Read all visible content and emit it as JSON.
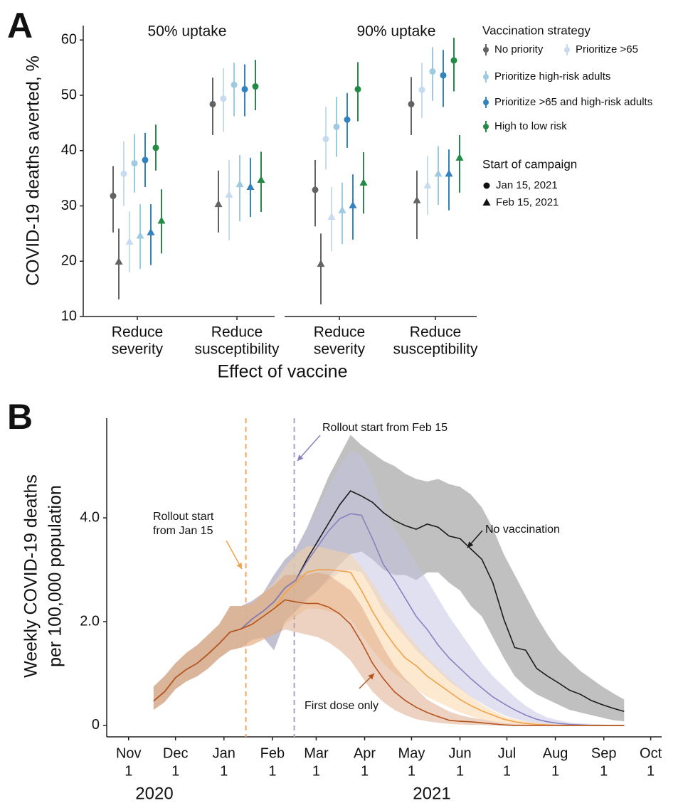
{
  "chart_data": [
    {
      "type": "dot-whisker",
      "panel_label": "A",
      "ylabel": "COVID-19 deaths averted, %",
      "xlabel": "Effect of vaccine",
      "facets": [
        "50% uptake",
        "90% uptake"
      ],
      "categories": [
        [
          "Reduce",
          "severity"
        ],
        [
          "Reduce",
          "susceptibility"
        ]
      ],
      "ylim": [
        10,
        62.6
      ],
      "yticks": [
        10,
        20,
        30,
        40,
        50,
        60
      ],
      "legend_title": "Vaccination strategy",
      "start_title": "Start of campaign",
      "starts": [
        {
          "name": "Jan 15, 2021",
          "marker": "circle"
        },
        {
          "name": "Feb 15, 2021",
          "marker": "triangle"
        }
      ],
      "series": [
        {
          "name": "No priority",
          "color": "#636363",
          "values": [
            [
              [
                31.8,
                25.2,
                37.2
              ],
              [
                48.4,
                42.8,
                53.2
              ],
              [
                32.9,
                26.3,
                38.3
              ],
              [
                48.4,
                42.8,
                53.3
              ]
            ],
            [
              [
                19.9,
                13.1,
                25.9
              ],
              [
                30.3,
                25.2,
                36.4
              ],
              [
                19.5,
                12.2,
                25
              ],
              [
                31,
                24,
                36.4
              ]
            ]
          ]
        },
        {
          "name": "Prioritize >65",
          "color": "#c6dbef",
          "values": [
            [
              [
                35.8,
                30,
                41.7
              ],
              [
                49.4,
                43.4,
                54.9
              ],
              [
                42.1,
                36.6,
                47.9
              ],
              [
                51,
                45.9,
                55.9
              ]
            ],
            [
              [
                23.5,
                18,
                29
              ],
              [
                32,
                23.8,
                38.3
              ],
              [
                28,
                21.8,
                33.4
              ],
              [
                33.7,
                28.4,
                39
              ]
            ]
          ]
        },
        {
          "name": "Prioritize high-risk adults",
          "color": "#9ecae1",
          "values": [
            [
              [
                37.7,
                32.4,
                43
              ],
              [
                51.9,
                46.2,
                55.9
              ],
              [
                44.3,
                38.9,
                49.7
              ],
              [
                54.3,
                49,
                58.7
              ]
            ],
            [
              [
                24.6,
                18.6,
                30.3
              ],
              [
                33.9,
                27.2,
                39.2
              ],
              [
                29.2,
                23.1,
                34.2
              ],
              [
                35.8,
                30.2,
                40.8
              ]
            ]
          ]
        },
        {
          "name": "Prioritize >65 and high-risk adults",
          "color": "#3182bd",
          "values": [
            [
              [
                38.3,
                33.4,
                43.2
              ],
              [
                51.1,
                46.2,
                55.6
              ],
              [
                45.6,
                40.5,
                50.4
              ],
              [
                53.6,
                47.9,
                58.2
              ]
            ],
            [
              [
                25.2,
                19.3,
                30.3
              ],
              [
                33.4,
                28,
                38.7
              ],
              [
                30.1,
                23.9,
                35.7
              ],
              [
                35.8,
                29.2,
                40.2
              ]
            ]
          ]
        },
        {
          "name": "High to low risk",
          "color": "#238b45",
          "values": [
            [
              [
                40.5,
                36.4,
                44.7
              ],
              [
                51.6,
                47.3,
                56.4
              ],
              [
                51.1,
                45.3,
                56
              ],
              [
                56.3,
                50.7,
                60.4
              ]
            ],
            [
              [
                27.3,
                21.4,
                33
              ],
              [
                34.7,
                28.9,
                39.8
              ],
              [
                34.2,
                28.6,
                39.7
              ],
              [
                38.7,
                32.4,
                42.8
              ]
            ]
          ]
        }
      ]
    },
    {
      "type": "line-band",
      "panel_label": "B",
      "ylabel": [
        "Weekly COVID-19 deaths",
        "per 100,000 population"
      ],
      "ylim": [
        -0.22,
        5.92
      ],
      "yticks": [
        0,
        {
          "value": 2,
          "label": "2.0"
        },
        {
          "value": 4,
          "label": "4.0"
        }
      ],
      "xlim": [
        "2020-10-18",
        "2021-10-08"
      ],
      "xticks": [
        {
          "value": "2020-11-01",
          "label": [
            "Nov",
            "1"
          ]
        },
        {
          "value": "2020-12-01",
          "label": [
            "Dec",
            "1"
          ]
        },
        {
          "value": "2021-01-01",
          "label": [
            "Jan",
            "1"
          ]
        },
        {
          "value": "2021-02-01",
          "label": [
            "Feb",
            "1"
          ]
        },
        {
          "value": "2021-03-01",
          "label": [
            "Mar",
            "1"
          ]
        },
        {
          "value": "2021-04-01",
          "label": [
            "Apr",
            "1"
          ]
        },
        {
          "value": "2021-05-01",
          "label": [
            "May",
            "1"
          ]
        },
        {
          "value": "2021-06-01",
          "label": [
            "Jun",
            "1"
          ]
        },
        {
          "value": "2021-07-01",
          "label": [
            "Jul",
            "1"
          ]
        },
        {
          "value": "2021-08-01",
          "label": [
            "Aug",
            "1"
          ]
        },
        {
          "value": "2021-09-01",
          "label": [
            "Sep",
            "1"
          ]
        },
        {
          "value": "2021-10-01",
          "label": [
            "Oct",
            "1"
          ]
        }
      ],
      "year_labels": [
        "2020",
        "2021"
      ],
      "rollout_lines": [
        {
          "x": "2021-01-15",
          "color": "#f4a75a"
        },
        {
          "x": "2021-02-15",
          "color": "#a3a2d0"
        }
      ],
      "x": [
        "2020-11-17",
        "2020-11-24",
        "2020-12-01",
        "2020-12-08",
        "2020-12-15",
        "2020-12-22",
        "2020-12-29",
        "2021-01-05",
        "2021-01-12",
        "2021-01-19",
        "2021-01-26",
        "2021-02-02",
        "2021-02-09",
        "2021-02-16",
        "2021-02-23",
        "2021-03-02",
        "2021-03-09",
        "2021-03-16",
        "2021-03-23",
        "2021-03-30",
        "2021-04-06",
        "2021-04-13",
        "2021-04-20",
        "2021-04-27",
        "2021-05-04",
        "2021-05-11",
        "2021-05-18",
        "2021-05-25",
        "2021-06-01",
        "2021-06-08",
        "2021-06-15",
        "2021-06-22",
        "2021-06-29",
        "2021-07-06",
        "2021-07-13",
        "2021-07-20",
        "2021-07-27",
        "2021-08-03",
        "2021-08-10",
        "2021-08-17",
        "2021-08-24",
        "2021-08-31",
        "2021-09-07",
        "2021-09-14"
      ],
      "series": [
        {
          "name": [
            "No vaccination"
          ],
          "color": "#1a1a1a",
          "band_color": "#8c8c8c",
          "values": [
            0.47,
            0.65,
            0.92,
            1.08,
            1.2,
            1.38,
            1.58,
            1.8,
            1.86,
            2.05,
            2.2,
            2.38,
            2.65,
            2.8,
            3.2,
            3.55,
            3.9,
            4.25,
            4.52,
            4.42,
            4.3,
            4.1,
            3.95,
            3.85,
            3.78,
            3.88,
            3.82,
            3.65,
            3.6,
            3.4,
            3.2,
            2.75,
            2.05,
            1.5,
            1.45,
            1.1,
            0.95,
            0.82,
            0.68,
            0.6,
            0.48,
            0.4,
            0.33,
            0.27
          ],
          "lower": [
            0.3,
            0.45,
            0.7,
            0.85,
            0.95,
            1.1,
            1.3,
            1.45,
            1.5,
            1.65,
            1.7,
            1.45,
            2.0,
            2.2,
            2.45,
            2.6,
            2.85,
            3.1,
            3.3,
            3.35,
            3.2,
            3.0,
            2.9,
            2.9,
            2.8,
            2.95,
            2.95,
            2.75,
            2.6,
            2.3,
            2.1,
            1.7,
            1.3,
            0.95,
            0.75,
            0.6,
            0.5,
            0.4,
            0.3,
            0.25,
            0.2,
            0.15,
            0.1,
            0.08
          ],
          "upper": [
            0.75,
            0.95,
            1.2,
            1.4,
            1.55,
            1.75,
            1.95,
            2.3,
            2.3,
            2.4,
            2.55,
            2.9,
            3.2,
            3.4,
            3.8,
            4.3,
            4.8,
            5.2,
            5.6,
            5.4,
            5.25,
            5.1,
            5.0,
            4.85,
            4.75,
            4.7,
            4.75,
            4.65,
            4.6,
            4.45,
            4.2,
            3.8,
            3.3,
            2.9,
            2.5,
            2.1,
            1.75,
            1.45,
            1.25,
            1.05,
            0.9,
            0.75,
            0.62,
            0.5
          ]
        },
        {
          "name": [
            "Rollout start from Feb 15"
          ],
          "color": "#8682bf",
          "band_color": "#c3c2e3",
          "values": [
            0.47,
            0.65,
            0.92,
            1.08,
            1.2,
            1.38,
            1.58,
            1.8,
            1.86,
            2.05,
            2.2,
            2.38,
            2.65,
            2.8,
            3.15,
            3.45,
            3.75,
            3.98,
            4.08,
            4.05,
            3.6,
            3.1,
            2.8,
            2.45,
            2.1,
            1.85,
            1.55,
            1.3,
            1.1,
            0.9,
            0.72,
            0.55,
            0.42,
            0.3,
            0.2,
            0.12,
            0.07,
            0.04,
            0.02,
            0.01,
            0,
            0,
            0,
            0
          ],
          "lower": [
            0.3,
            0.45,
            0.7,
            0.85,
            0.95,
            1.1,
            1.3,
            1.45,
            1.5,
            1.65,
            1.7,
            1.45,
            2.0,
            2.2,
            2.4,
            2.6,
            2.8,
            2.95,
            3.0,
            2.95,
            2.6,
            2.2,
            1.95,
            1.7,
            1.45,
            1.25,
            1.05,
            0.85,
            0.7,
            0.55,
            0.42,
            0.3,
            0.2,
            0.13,
            0.08,
            0.04,
            0.02,
            0.01,
            0,
            0,
            0,
            0,
            0,
            0
          ],
          "upper": [
            0.75,
            0.95,
            1.2,
            1.4,
            1.55,
            1.75,
            1.95,
            2.3,
            2.3,
            2.4,
            2.55,
            2.9,
            3.2,
            3.4,
            3.8,
            4.2,
            4.6,
            5.0,
            5.3,
            5.2,
            4.8,
            4.2,
            3.8,
            3.5,
            3.1,
            2.8,
            2.45,
            2.1,
            1.8,
            1.5,
            1.2,
            0.95,
            0.75,
            0.55,
            0.38,
            0.25,
            0.15,
            0.1,
            0.06,
            0.04,
            0.03,
            0.02,
            0.01,
            0.01
          ]
        },
        {
          "name": [
            "Rollout start",
            "from Jan 15"
          ],
          "color": "#f2a24a",
          "band_color": "#fbd3a0",
          "values": [
            0.47,
            0.65,
            0.92,
            1.08,
            1.2,
            1.38,
            1.58,
            1.8,
            1.86,
            1.95,
            2.1,
            2.25,
            2.55,
            2.75,
            2.95,
            3.0,
            3.0,
            2.98,
            2.95,
            2.6,
            2.2,
            1.85,
            1.55,
            1.3,
            1.15,
            0.95,
            0.8,
            0.65,
            0.5,
            0.38,
            0.28,
            0.2,
            0.12,
            0.07,
            0.04,
            0.02,
            0.01,
            0,
            0,
            0,
            0,
            0,
            0,
            0
          ],
          "lower": [
            0.3,
            0.45,
            0.7,
            0.85,
            0.95,
            1.1,
            1.3,
            1.45,
            1.5,
            1.55,
            1.65,
            1.75,
            1.95,
            2.1,
            2.25,
            2.25,
            2.2,
            2.15,
            2.05,
            1.75,
            1.45,
            1.2,
            1.0,
            0.85,
            0.7,
            0.55,
            0.45,
            0.35,
            0.25,
            0.18,
            0.12,
            0.08,
            0.05,
            0.03,
            0.02,
            0.01,
            0,
            0,
            0,
            0,
            0,
            0,
            0,
            0
          ],
          "upper": [
            0.75,
            0.95,
            1.2,
            1.4,
            1.55,
            1.75,
            1.95,
            2.3,
            2.3,
            2.35,
            2.55,
            2.75,
            3.05,
            3.3,
            3.45,
            3.45,
            3.4,
            3.35,
            3.3,
            3.05,
            2.75,
            2.4,
            2.1,
            1.8,
            1.55,
            1.3,
            1.1,
            0.9,
            0.72,
            0.55,
            0.4,
            0.28,
            0.18,
            0.12,
            0.08,
            0.05,
            0.03,
            0.02,
            0.01,
            0.01,
            0,
            0,
            0,
            0
          ]
        },
        {
          "name": [
            "First dose only"
          ],
          "color": "#b5541e",
          "band_color": "#d89c76",
          "values": [
            0.47,
            0.65,
            0.92,
            1.08,
            1.2,
            1.38,
            1.58,
            1.8,
            1.86,
            1.95,
            2.1,
            2.25,
            2.42,
            2.38,
            2.35,
            2.35,
            2.28,
            2.15,
            1.95,
            1.6,
            1.2,
            0.9,
            0.65,
            0.48,
            0.35,
            0.25,
            0.17,
            0.1,
            0.08,
            0.07,
            0.05,
            0.03,
            0.01,
            0,
            0,
            0,
            0,
            0,
            0,
            0,
            0,
            0,
            0,
            0
          ],
          "lower": [
            0.3,
            0.45,
            0.7,
            0.85,
            0.95,
            1.1,
            1.3,
            1.45,
            1.5,
            1.55,
            1.65,
            1.75,
            1.85,
            1.8,
            1.75,
            1.7,
            1.6,
            1.45,
            1.25,
            0.95,
            0.65,
            0.45,
            0.3,
            0.2,
            0.12,
            0.08,
            0.05,
            0.03,
            0.02,
            0.01,
            0.01,
            0,
            0,
            0,
            0,
            0,
            0,
            0,
            0,
            0,
            0,
            0,
            0,
            0
          ],
          "upper": [
            0.75,
            0.95,
            1.2,
            1.4,
            1.55,
            1.75,
            1.95,
            2.3,
            2.3,
            2.35,
            2.55,
            2.7,
            2.9,
            2.9,
            2.9,
            2.95,
            2.9,
            2.75,
            2.6,
            2.3,
            1.9,
            1.5,
            1.15,
            0.9,
            0.7,
            0.5,
            0.38,
            0.27,
            0.2,
            0.15,
            0.12,
            0.08,
            0.05,
            0.03,
            0.02,
            0.01,
            0,
            0,
            0,
            0,
            0,
            0,
            0,
            0
          ]
        }
      ]
    }
  ]
}
